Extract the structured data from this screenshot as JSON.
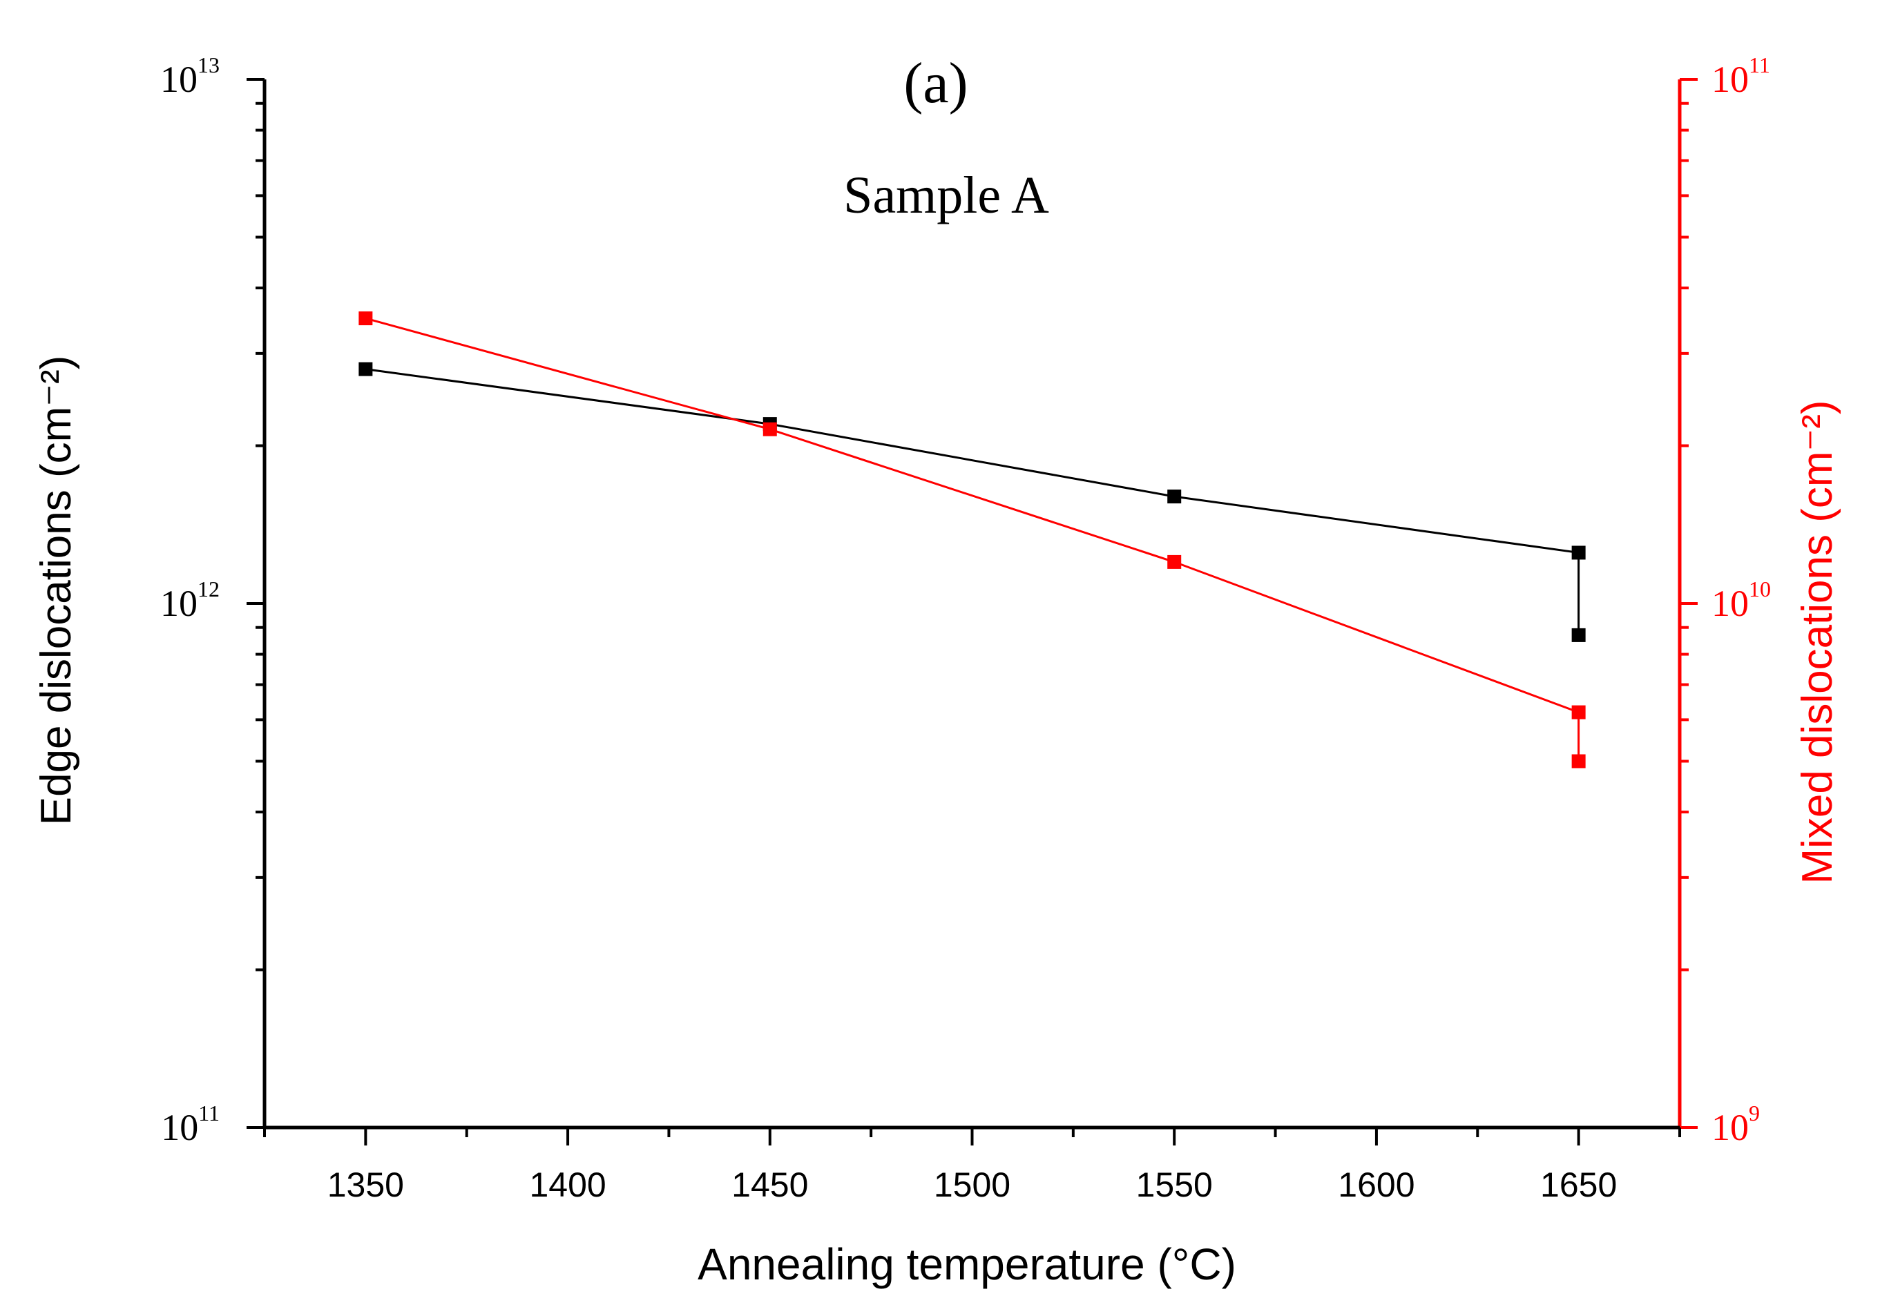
{
  "chart_data": {
    "type": "line",
    "panel_label": "(a)",
    "title": "Sample A",
    "xlabel": "Annealing temperature (°C)",
    "ylabel_left": "Edge dislocations (cm⁻²)",
    "ylabel_right": "Mixed dislocations (cm⁻²)",
    "xlim": [
      1325,
      1675
    ],
    "x_ticks": [
      1350,
      1400,
      1450,
      1500,
      1550,
      1600,
      1650
    ],
    "left_axis": {
      "scale": "log",
      "ylim": [
        100000000000.0,
        10000000000000.0
      ],
      "tick_labels": [
        {
          "base": "10",
          "exp": "11",
          "value": 100000000000.0
        },
        {
          "base": "10",
          "exp": "12",
          "value": 1000000000000.0
        },
        {
          "base": "10",
          "exp": "13",
          "value": 10000000000000.0
        }
      ],
      "color": "#000000"
    },
    "right_axis": {
      "scale": "log",
      "ylim": [
        1000000000.0,
        100000000000.0
      ],
      "tick_labels": [
        {
          "base": "10",
          "exp": "9",
          "value": 1000000000.0
        },
        {
          "base": "10",
          "exp": "10",
          "value": 10000000000.0
        },
        {
          "base": "10",
          "exp": "11",
          "value": 100000000000.0
        }
      ],
      "color": "#ff0000"
    },
    "series": [
      {
        "name": "Edge dislocations",
        "axis": "left",
        "color": "#000000",
        "x": [
          1350,
          1450,
          1550,
          1650,
          1650
        ],
        "y": [
          2800000000000.0,
          2200000000000.0,
          1600000000000.0,
          1250000000000.0,
          870000000000.0
        ]
      },
      {
        "name": "Mixed dislocations",
        "axis": "right",
        "color": "#ff0000",
        "x": [
          1350,
          1450,
          1550,
          1650,
          1650
        ],
        "y": [
          35000000000.0,
          21500000000.0,
          12000000000.0,
          6200000000.0,
          5000000000.0
        ]
      }
    ]
  }
}
